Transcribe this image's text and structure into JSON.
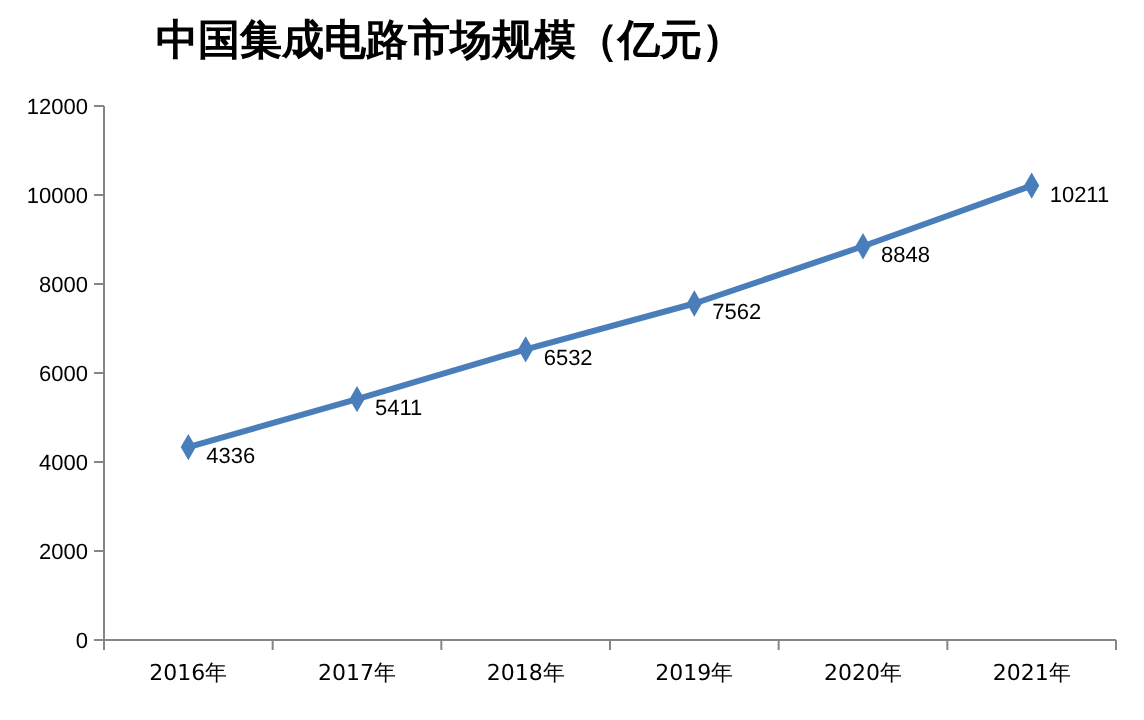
{
  "chart_data": {
    "type": "line",
    "title": "中国集成电路市场规模（亿元）",
    "categories": [
      "2016年",
      "2017年",
      "2018年",
      "2019年",
      "2020年",
      "2021年"
    ],
    "series": [
      {
        "color": "#4a7ebb",
        "values": [
          4336,
          5411,
          6532,
          7562,
          8848,
          10211
        ]
      }
    ],
    "ylim": [
      0,
      12000
    ],
    "yticks": [
      0,
      2000,
      4000,
      6000,
      8000,
      10000,
      12000
    ],
    "grid": false,
    "marker": "diamond",
    "line_style": "solid",
    "data_labels": true
  }
}
